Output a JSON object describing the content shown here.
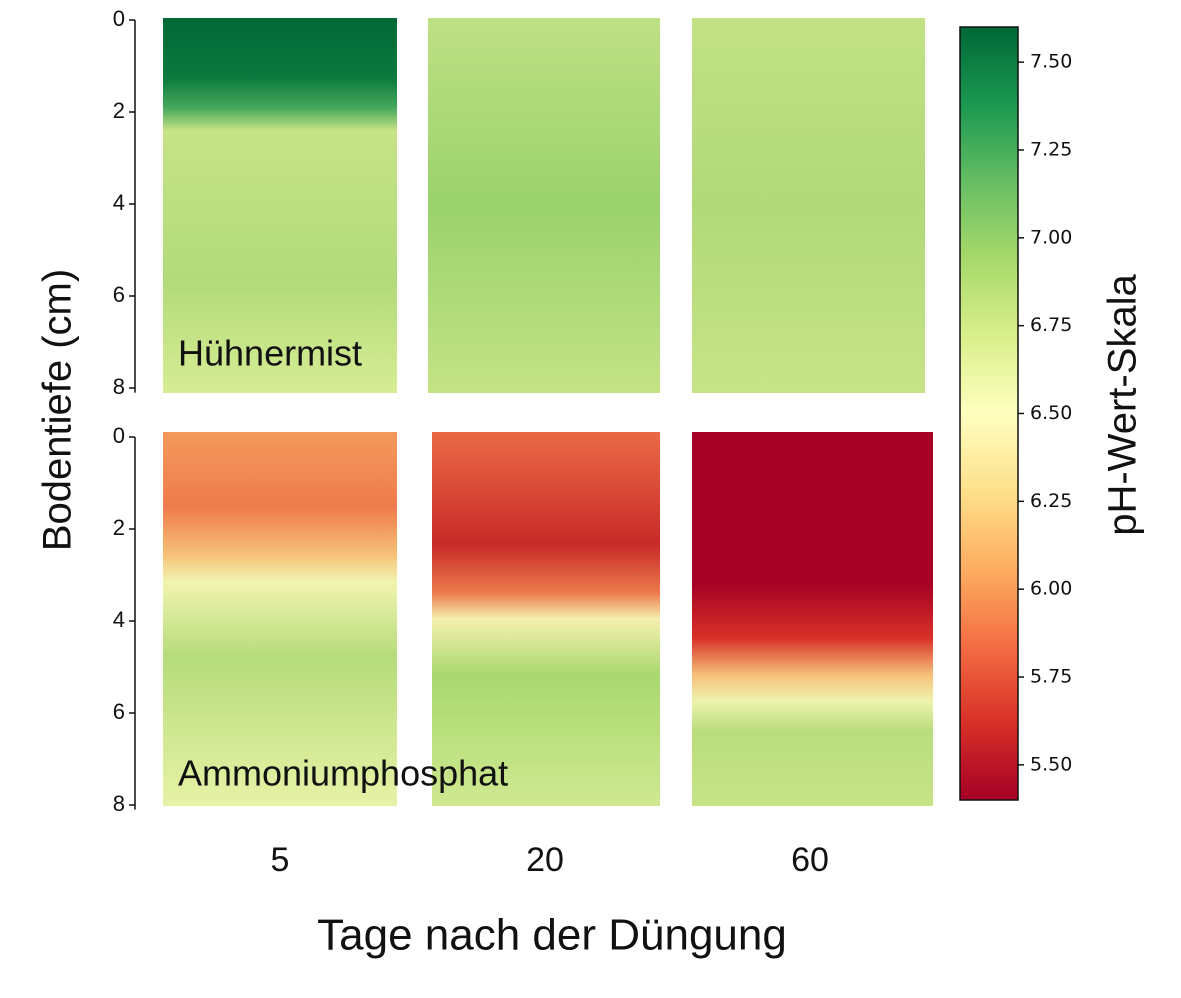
{
  "figure": {
    "y_label": "Bodentiefe (cm)",
    "x_label": "Tage nach der Düngung",
    "columns": [
      "5",
      "20",
      "60"
    ],
    "ylim": [
      0,
      8.1
    ],
    "panels": [
      {
        "label": "Hühnermist",
        "yticks": [
          0,
          2,
          4,
          6,
          8
        ]
      },
      {
        "label": "Ammoniumphosphat",
        "yticks": [
          0,
          2,
          4,
          6,
          8
        ]
      }
    ],
    "colorbar": {
      "label": "pH-Wert-Skala",
      "lim": [
        5.4,
        7.6
      ],
      "ticks": [
        {
          "value": 5.5,
          "label": "5.50"
        },
        {
          "value": 5.75,
          "label": "5.75"
        },
        {
          "value": 6.0,
          "label": "6.00"
        },
        {
          "value": 6.25,
          "label": "6.25"
        },
        {
          "value": 6.5,
          "label": "6.50"
        },
        {
          "value": 6.75,
          "label": "6.75"
        },
        {
          "value": 7.0,
          "label": "7.00"
        },
        {
          "value": 7.25,
          "label": "7.25"
        },
        {
          "value": 7.5,
          "label": "7.50"
        }
      ]
    }
  }
}
